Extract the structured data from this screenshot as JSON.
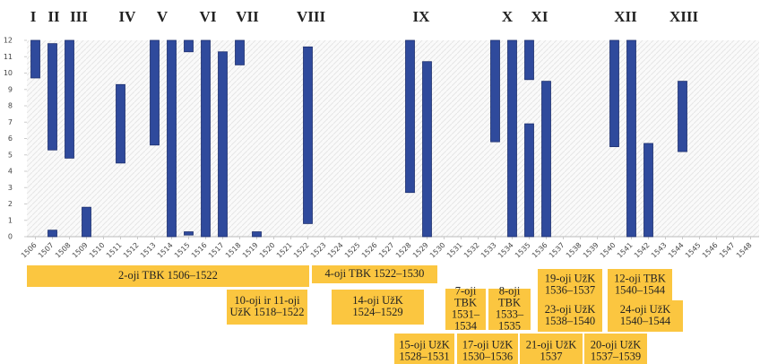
{
  "chart_data": {
    "type": "floating-bar",
    "xlim": [
      1505.5,
      1548.5
    ],
    "xticks": [
      1506,
      1507,
      1508,
      1509,
      1510,
      1511,
      1512,
      1513,
      1514,
      1515,
      1516,
      1517,
      1518,
      1519,
      1520,
      1521,
      1522,
      1523,
      1524,
      1525,
      1526,
      1527,
      1528,
      1529,
      1530,
      1531,
      1532,
      1533,
      1534,
      1535,
      1536,
      1537,
      1538,
      1539,
      1540,
      1541,
      1542,
      1543,
      1544,
      1545,
      1546,
      1547,
      1548
    ],
    "ylim": [
      0,
      12
    ],
    "yticks": [
      0,
      1,
      2,
      3,
      4,
      5,
      6,
      7,
      8,
      9,
      10,
      11,
      12
    ],
    "color": "#2f4a9c",
    "bars": [
      {
        "x": 1506,
        "low": 9.7,
        "high": 12
      },
      {
        "x": 1507,
        "low": 5.3,
        "high": 11.8
      },
      {
        "x": 1507,
        "low": 0,
        "high": 0.4
      },
      {
        "x": 1508,
        "low": 4.8,
        "high": 12
      },
      {
        "x": 1509,
        "low": 0,
        "high": 1.8
      },
      {
        "x": 1511,
        "low": 4.5,
        "high": 9.3
      },
      {
        "x": 1513,
        "low": 5.6,
        "high": 12
      },
      {
        "x": 1514,
        "low": 0,
        "high": 12
      },
      {
        "x": 1515,
        "low": 11.3,
        "high": 12
      },
      {
        "x": 1515,
        "low": 0.1,
        "high": 0.3
      },
      {
        "x": 1516,
        "low": 0,
        "high": 12
      },
      {
        "x": 1517,
        "low": 0,
        "high": 11.3
      },
      {
        "x": 1518,
        "low": 10.5,
        "high": 12
      },
      {
        "x": 1519,
        "low": 0,
        "high": 0.3
      },
      {
        "x": 1522,
        "low": 0.8,
        "high": 11.6
      },
      {
        "x": 1528,
        "low": 2.7,
        "high": 12
      },
      {
        "x": 1529,
        "low": 0,
        "high": 10.7
      },
      {
        "x": 1533,
        "low": 5.8,
        "high": 12
      },
      {
        "x": 1534,
        "low": 0,
        "high": 12
      },
      {
        "x": 1535,
        "low": 9.6,
        "high": 12
      },
      {
        "x": 1535,
        "low": 0,
        "high": 6.9
      },
      {
        "x": 1536,
        "low": 0,
        "high": 9.5
      },
      {
        "x": 1540,
        "low": 5.5,
        "high": 12
      },
      {
        "x": 1541,
        "low": 0,
        "high": 12
      },
      {
        "x": 1542,
        "low": 0,
        "high": 5.7
      },
      {
        "x": 1544,
        "low": 5.2,
        "high": 9.5
      }
    ],
    "annotations": [
      "I",
      "II",
      "III",
      "IV",
      "V",
      "VI",
      "VII",
      "VIII",
      "IX",
      "X",
      "XI",
      "XII",
      "XIII"
    ],
    "periods": [
      [
        "2-oji TBK 1506–1522"
      ],
      [
        "4-oji TBK 1522–1530"
      ],
      [
        "7-oji",
        "TBK",
        "1531–",
        "1534"
      ],
      [
        "8-oji",
        "TBK",
        "1533–",
        "1535"
      ],
      [
        "19-oji UžK",
        "1536–1537"
      ],
      [
        "12-oji TBK",
        "1540–1544"
      ],
      [
        "10-oji ir 11-oji",
        "UžK 1518–1522"
      ],
      [
        "14-oji UžK",
        "1524–1529"
      ],
      [
        "23-oji UžK",
        "1538–1540"
      ],
      [
        "24-oji UžK",
        "1540–1544"
      ],
      [
        "15-oji UžK",
        "1528–1531"
      ],
      [
        "17-oji UžK",
        "1530–1536"
      ],
      [
        "21-oji UžK",
        "1537"
      ],
      [
        "20-oji UžK",
        "1537–1539"
      ]
    ]
  }
}
